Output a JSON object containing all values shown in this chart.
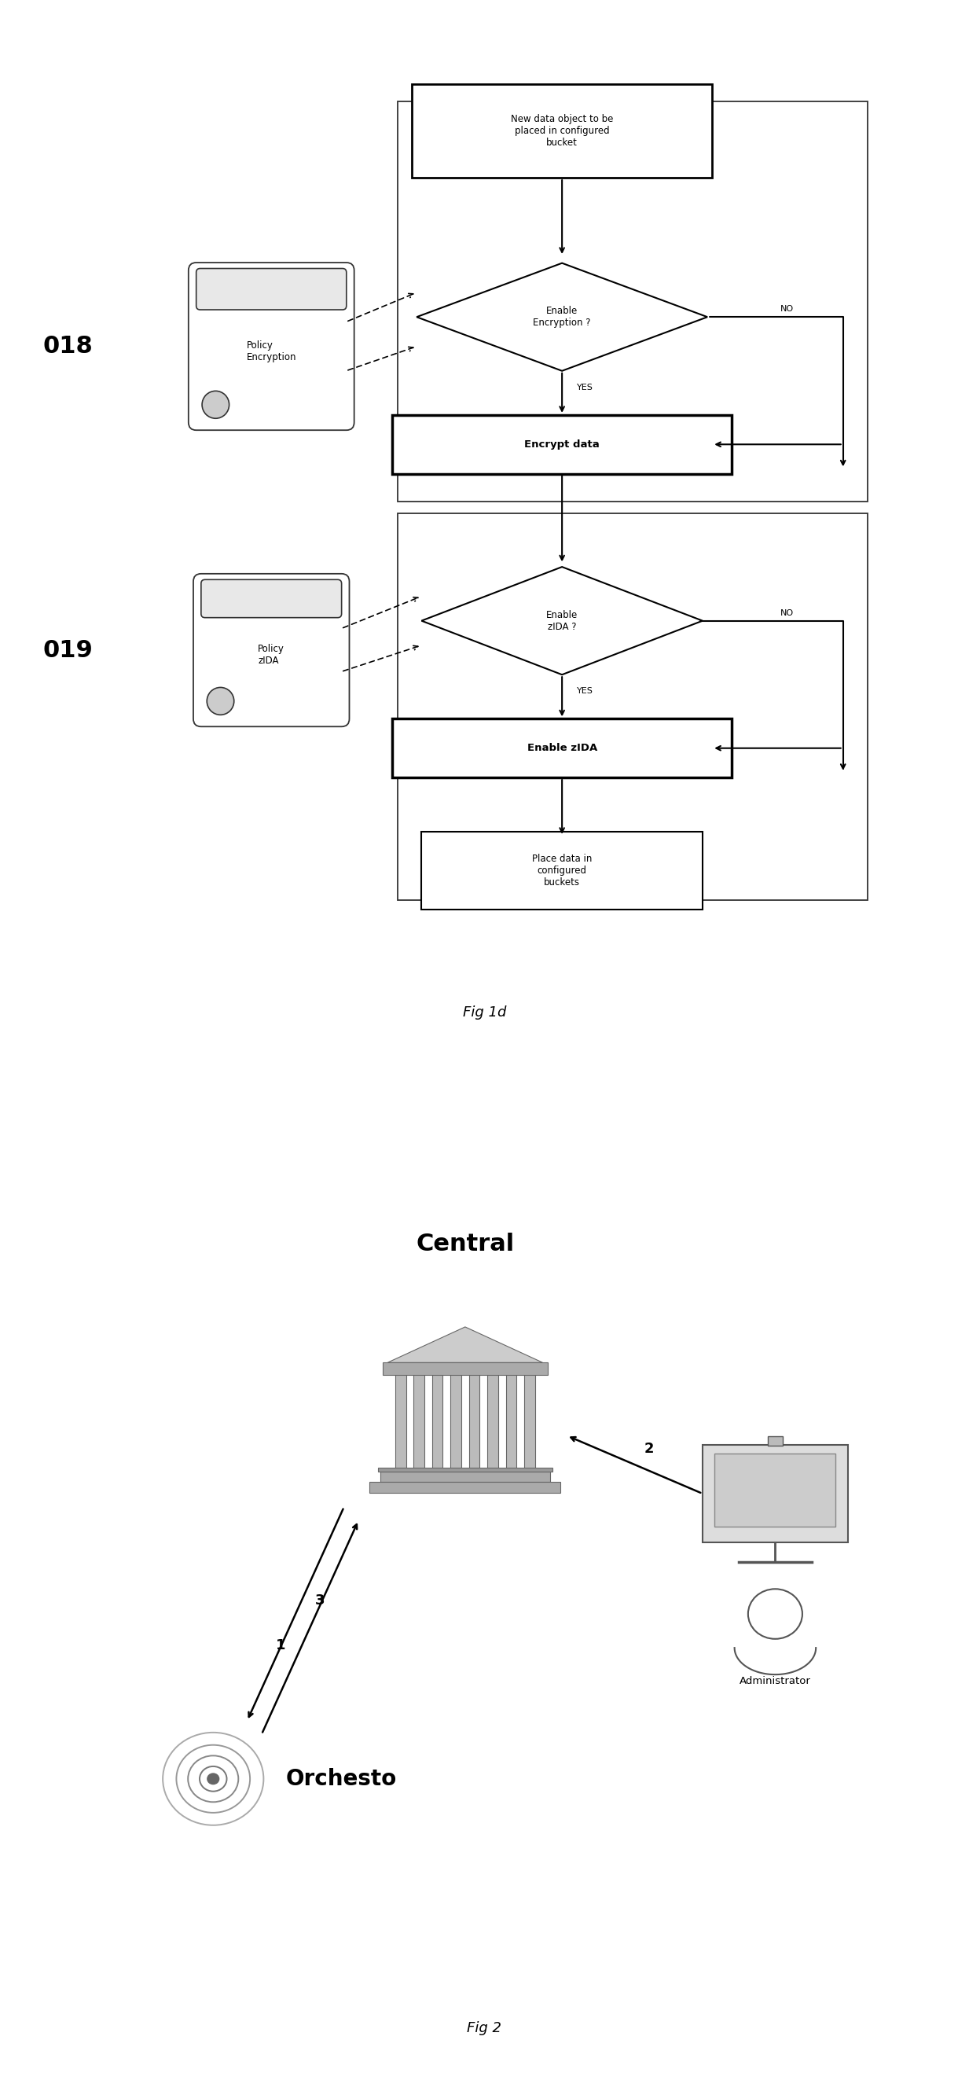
{
  "fig_width": 12.33,
  "fig_height": 26.37,
  "bg_color": "#ffffff",
  "fig1d_label": "Fig 1d",
  "fig2_label": "Fig 2",
  "label_018": "018",
  "label_019": "019",
  "box_start_text": "New data object to be\nplaced in configured\nbucket",
  "diamond1_text": "Enable\nEncryption ?",
  "box_encrypt_text": "Encrypt data",
  "diamond2_text": "Enable\nzIDA ?",
  "box_zida_text": "Enable zIDA",
  "box_place_text": "Place data in\nconfigured\nbuckets",
  "policy1_text": "Policy\nEncryption",
  "policy2_text": "Policy\nzIDA",
  "no_label": "NO",
  "yes_label": "YES",
  "central_label": "Central",
  "orchesto_label": "Orchesto",
  "admin_label": "Administrator",
  "arrow1_label": "1",
  "arrow2_label": "2",
  "arrow3_label": "3"
}
